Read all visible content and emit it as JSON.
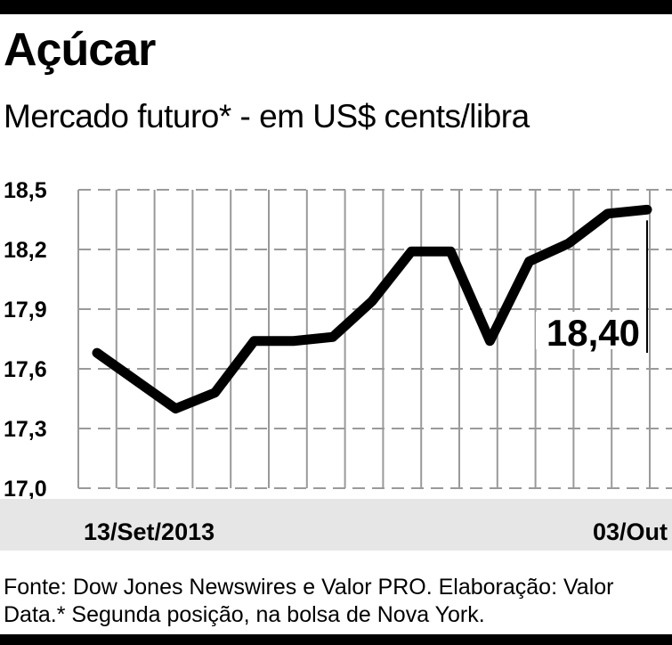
{
  "header": {
    "title": "Açúcar",
    "subtitle": "Mercado futuro* - em US$ cents/libra"
  },
  "footer": {
    "source": "Fonte: Dow Jones Newswires e Valor PRO. Elaboração: Valor Data.* Segunda posição, na bolsa de Nova York."
  },
  "chart_data": {
    "type": "line",
    "title": "Açúcar",
    "subtitle": "Mercado futuro* - em US$ cents/libra",
    "x_labels": [
      "13/Set/2013",
      "03/Out"
    ],
    "x": [
      1,
      2,
      3,
      4,
      5,
      6,
      7,
      8,
      9,
      10,
      11,
      12,
      13,
      14,
      15
    ],
    "series": [
      {
        "values": [
          17.68,
          17.54,
          17.4,
          17.48,
          17.74,
          17.74,
          17.76,
          17.94,
          18.19,
          18.19,
          17.74,
          18.14,
          18.23,
          18.38,
          18.4
        ]
      }
    ],
    "y_ticks": [
      "18,5",
      "18,2",
      "17,9",
      "17,6",
      "17,3",
      "17,0"
    ],
    "ylim": [
      17.0,
      18.5
    ],
    "grid": true,
    "annotation": "18,40",
    "colors": {
      "line": "#000000",
      "grid": "#9a9a9a",
      "axis_band": "#e6e6e6"
    }
  }
}
